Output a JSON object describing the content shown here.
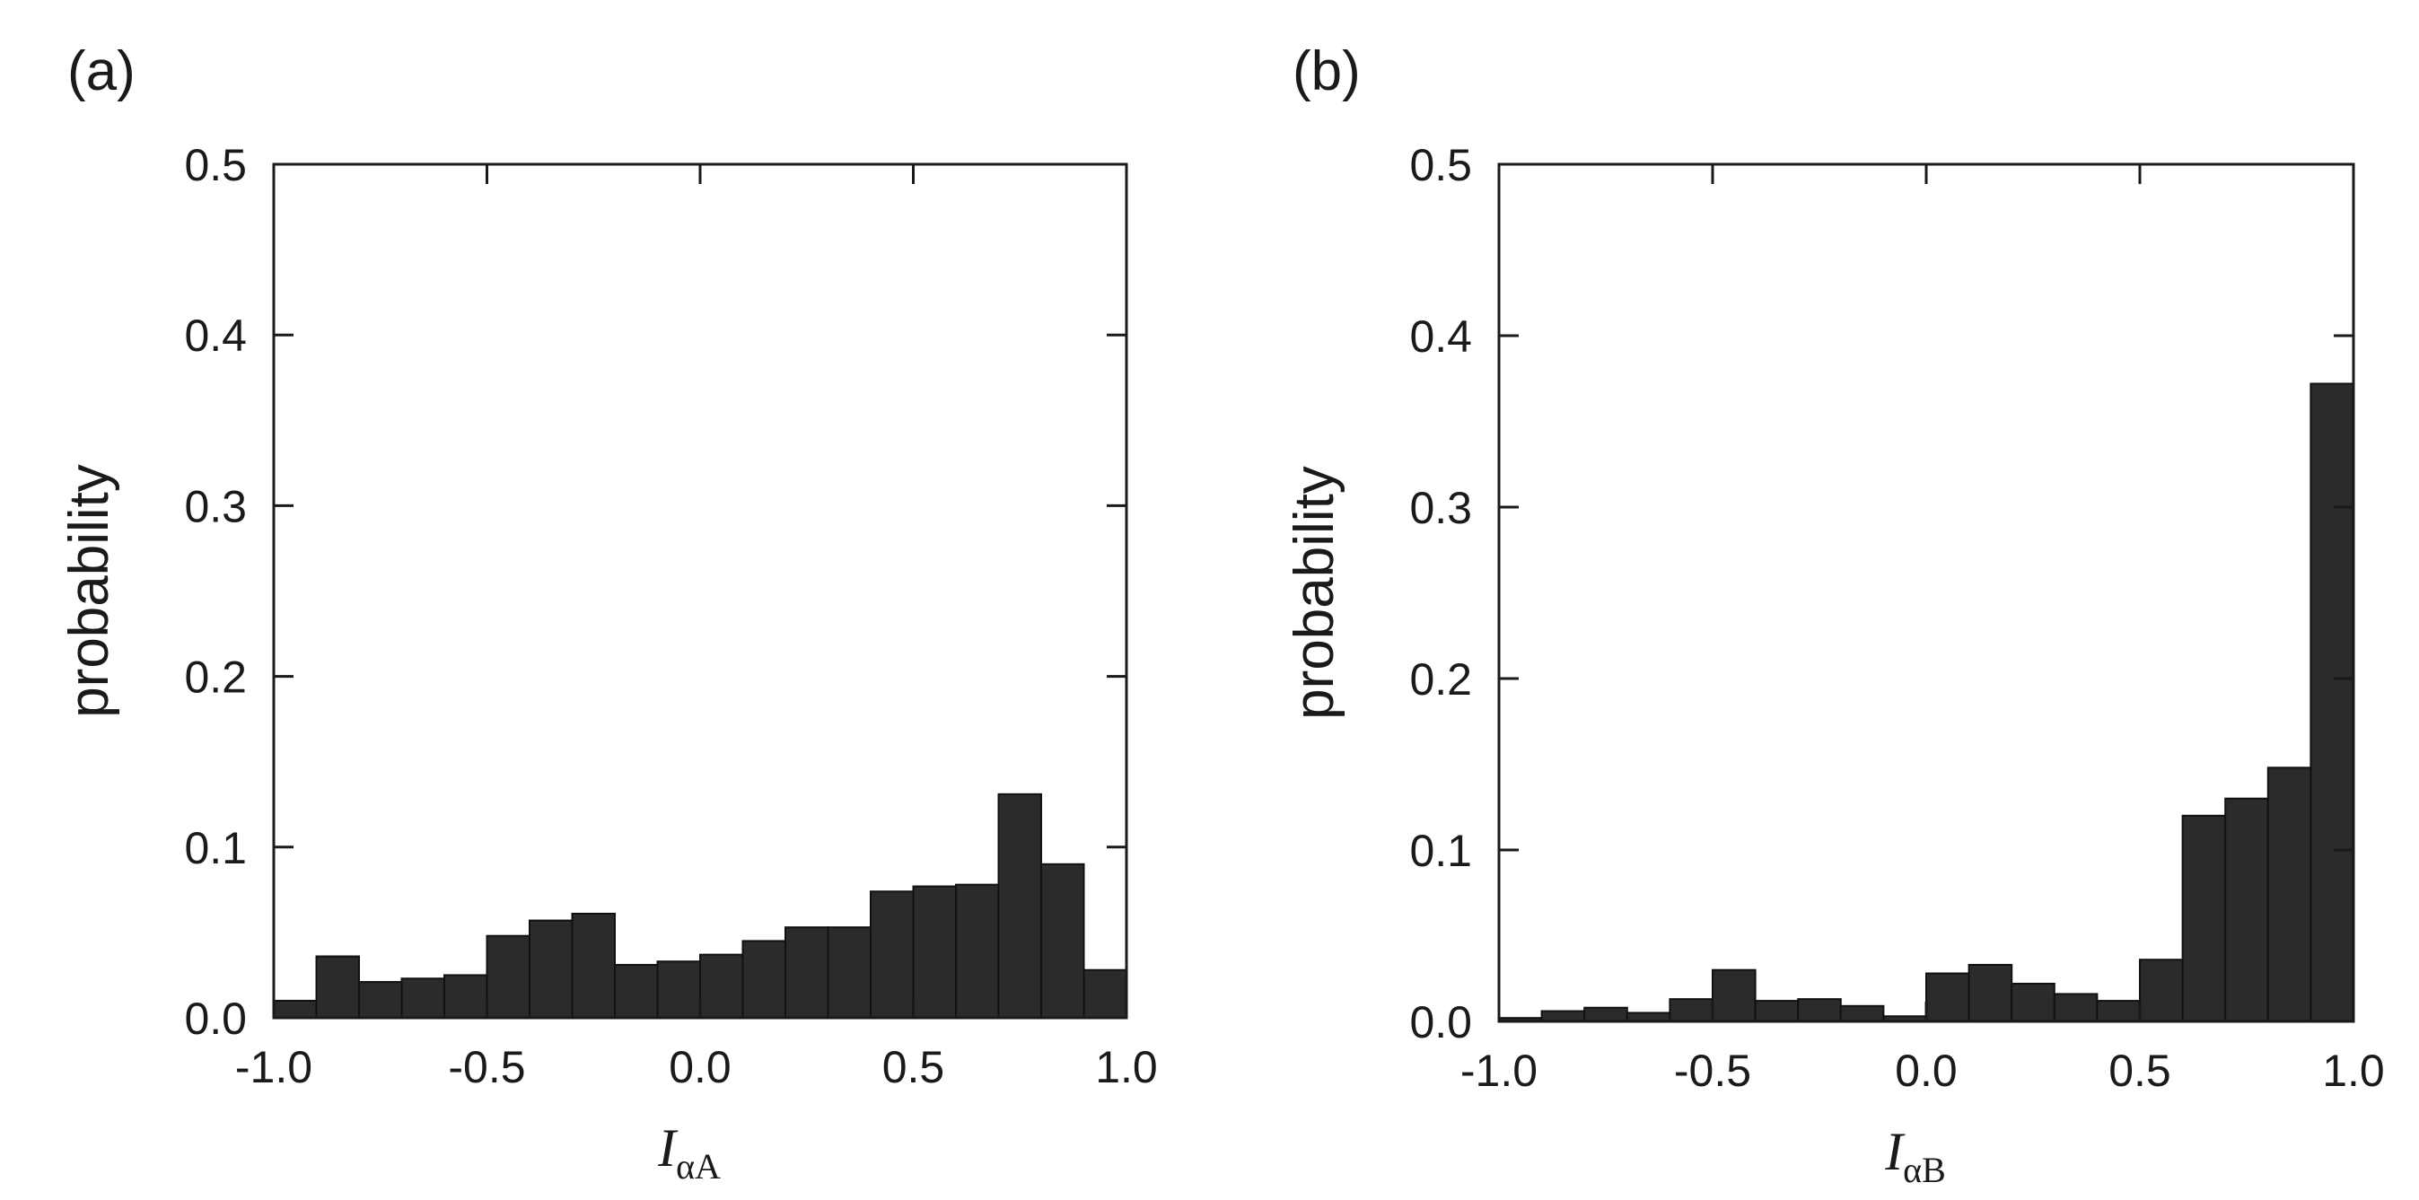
{
  "colors": {
    "bar_fill": "#2b2b2b",
    "bar_stroke": "#111111",
    "axis": "#1a1a1a",
    "background": "#ffffff"
  },
  "chart_data": [
    {
      "type": "bar",
      "panel_label": "(a)",
      "xlabel": {
        "main": "I",
        "sub": "αA"
      },
      "ylabel": "probability",
      "xlim": [
        -1.0,
        1.0
      ],
      "ylim": [
        0.0,
        0.5
      ],
      "xticks": [
        "-1.0",
        "-0.5",
        "0.0",
        "0.5",
        "1.0"
      ],
      "yticks": [
        "0.0",
        "0.1",
        "0.2",
        "0.3",
        "0.4",
        "0.5"
      ],
      "bin_width": 0.1,
      "bin_starts": [
        -1.0,
        -0.9,
        -0.8,
        -0.7,
        -0.6,
        -0.5,
        -0.4,
        -0.3,
        -0.2,
        -0.1,
        0.0,
        0.1,
        0.2,
        0.3,
        0.4,
        0.5,
        0.6,
        0.7,
        0.8,
        0.9
      ],
      "values": [
        0.01,
        0.036,
        0.021,
        0.023,
        0.025,
        0.048,
        0.057,
        0.061,
        0.031,
        0.033,
        0.037,
        0.045,
        0.053,
        0.053,
        0.074,
        0.077,
        0.078,
        0.131,
        0.09,
        0.028
      ]
    },
    {
      "type": "bar",
      "panel_label": "(b)",
      "xlabel": {
        "main": "I",
        "sub": "αB"
      },
      "ylabel": "probability",
      "xlim": [
        -1.0,
        1.0
      ],
      "ylim": [
        0.0,
        0.5
      ],
      "xticks": [
        "-1.0",
        "-0.5",
        "0.0",
        "0.5",
        "1.0"
      ],
      "yticks": [
        "0.0",
        "0.1",
        "0.2",
        "0.3",
        "0.4",
        "0.5"
      ],
      "bin_width": 0.1,
      "bin_starts": [
        -1.0,
        -0.9,
        -0.8,
        -0.7,
        -0.6,
        -0.5,
        -0.4,
        -0.3,
        -0.2,
        -0.1,
        0.0,
        0.1,
        0.2,
        0.3,
        0.4,
        0.5,
        0.6,
        0.7,
        0.8,
        0.9
      ],
      "values": [
        0.002,
        0.006,
        0.008,
        0.005,
        0.013,
        0.03,
        0.012,
        0.013,
        0.009,
        0.003,
        0.028,
        0.033,
        0.022,
        0.016,
        0.012,
        0.036,
        0.12,
        0.13,
        0.148,
        0.372
      ]
    }
  ]
}
